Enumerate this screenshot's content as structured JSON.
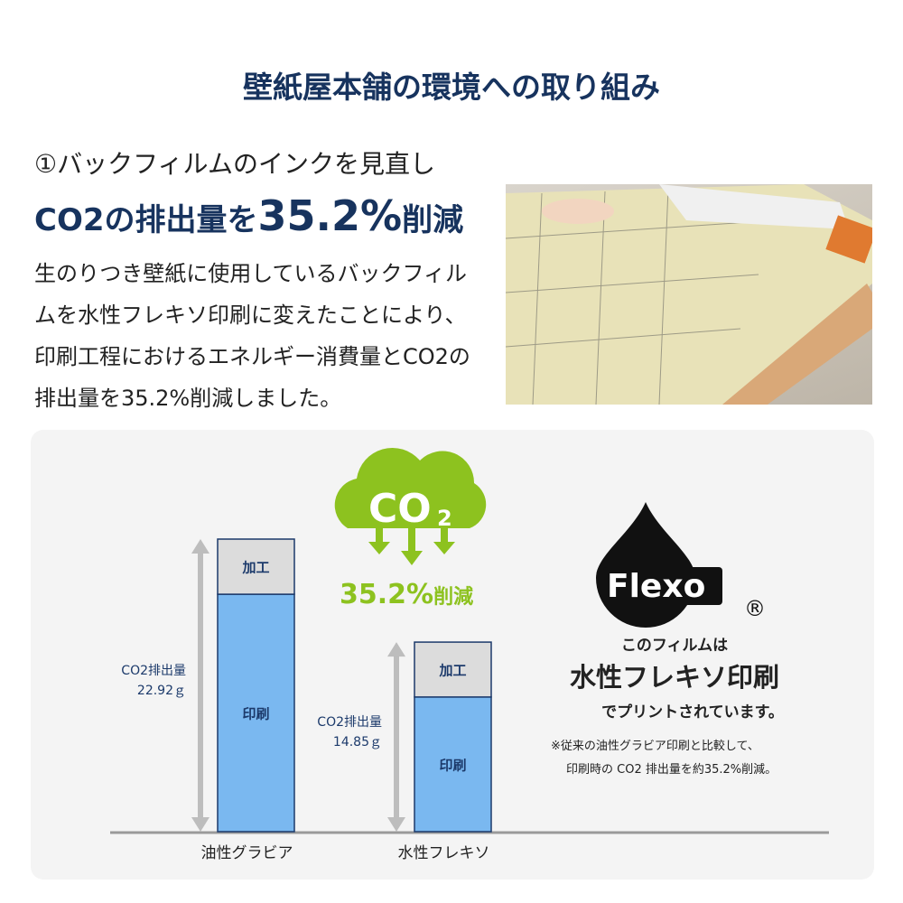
{
  "title": "壁紙屋本舗の環境への取り組み",
  "section": {
    "number_label": "①バックフィルムのインクを見直し",
    "headline_prefix": "CO2の排出量を",
    "headline_value": "35.2%",
    "headline_suffix": "削減",
    "body": "生のりつき壁紙に使用しているバックフィルムを水性フレキソ印刷に変えたことにより、印刷工程におけるエネルギー消費量とCO2の排出量を35.2%削減しました。"
  },
  "badge": {
    "cloud_text": "CO",
    "cloud_sub": "2",
    "reduction": "35.2%",
    "reduction_suffix": "削減",
    "color": "#8dc21f"
  },
  "flexo": {
    "logo_text": "Flexo",
    "registered": "®",
    "line1": "このフィルムは",
    "line2": "水性フレキソ印刷",
    "line3": "でプリントされています。",
    "note1": "※従来の油性グラビア印刷と比較して、",
    "note2": "印刷時の CO2 排出量を約35.2%削減。"
  },
  "chart_data": {
    "type": "bar",
    "stacked": true,
    "categories": [
      "油性グラビア",
      "水性フレキソ"
    ],
    "series": [
      {
        "name": "印刷",
        "values": [
          18.6,
          10.55
        ],
        "color": "#7ab8f0"
      },
      {
        "name": "加工",
        "values": [
          4.32,
          4.3
        ],
        "color": "#dcdcdc"
      }
    ],
    "totals": [
      22.92,
      14.85
    ],
    "total_labels": [
      [
        "CO2排出量",
        "22.92ｇ"
      ],
      [
        "CO2排出量",
        "14.85ｇ"
      ]
    ],
    "unit": "g",
    "ylim": [
      0,
      22.92
    ],
    "grid": false
  }
}
